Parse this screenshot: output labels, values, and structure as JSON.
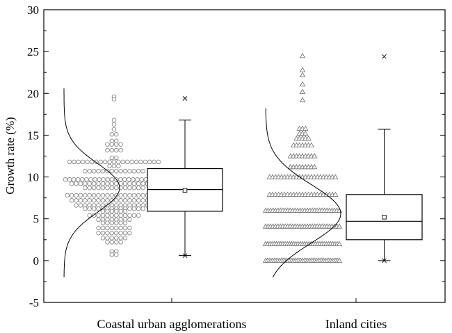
{
  "chart_data": {
    "type": "box",
    "ylabel": "Growth rate (%)",
    "ylim": [
      -5,
      30
    ],
    "yticks": [
      "-5",
      "0",
      "5",
      "10",
      "15",
      "20",
      "25",
      "30"
    ],
    "grid": false,
    "categories": [
      "Coastal urban agglomerations",
      "Inland cities"
    ],
    "groups": [
      {
        "category": "Coastal urban agglomerations",
        "marker": "circle",
        "box": {
          "whisker_low": 0.6,
          "q1": 5.9,
          "median": 8.5,
          "q3": 11.0,
          "whisker_high": 16.8,
          "mean": 8.4
        },
        "extremes": {
          "min": 0.6,
          "max": 19.4
        },
        "points": [
          {
            "y": 19.6,
            "n": 1
          },
          {
            "y": 19.3,
            "n": 1
          },
          {
            "y": 16.8,
            "n": 1
          },
          {
            "y": 16.3,
            "n": 1
          },
          {
            "y": 15.7,
            "n": 1
          },
          {
            "y": 15.1,
            "n": 2
          },
          {
            "y": 14.3,
            "n": 2
          },
          {
            "y": 13.9,
            "n": 4
          },
          {
            "y": 13.2,
            "n": 4
          },
          {
            "y": 12.3,
            "n": 2
          },
          {
            "y": 11.8,
            "n": 21
          },
          {
            "y": 11.3,
            "n": 3
          },
          {
            "y": 10.7,
            "n": 14
          },
          {
            "y": 9.7,
            "n": 24
          },
          {
            "y": 9.2,
            "n": 20
          },
          {
            "y": 8.7,
            "n": 14
          },
          {
            "y": 7.8,
            "n": 22
          },
          {
            "y": 7.2,
            "n": 20
          },
          {
            "y": 6.6,
            "n": 18
          },
          {
            "y": 6.2,
            "n": 14
          },
          {
            "y": 5.9,
            "n": 6
          },
          {
            "y": 5.4,
            "n": 12
          },
          {
            "y": 4.9,
            "n": 8
          },
          {
            "y": 4.5,
            "n": 6
          },
          {
            "y": 3.9,
            "n": 8
          },
          {
            "y": 3.3,
            "n": 8
          },
          {
            "y": 2.7,
            "n": 6
          },
          {
            "y": 2.2,
            "n": 4
          },
          {
            "y": 1.1,
            "n": 2
          },
          {
            "y": 0.7,
            "n": 2
          }
        ],
        "curve_range": [
          -2,
          20.7
        ]
      },
      {
        "category": "Inland cities",
        "marker": "triangle",
        "box": {
          "whisker_low": 0.0,
          "q1": 2.5,
          "median": 4.7,
          "q3": 7.9,
          "whisker_high": 15.7,
          "mean": 5.2
        },
        "extremes": {
          "min": 0.0,
          "max": 24.4
        },
        "points": [
          {
            "y": 24.5,
            "n": 1
          },
          {
            "y": 22.8,
            "n": 1
          },
          {
            "y": 22.2,
            "n": 1
          },
          {
            "y": 21.1,
            "n": 1
          },
          {
            "y": 20.2,
            "n": 1
          },
          {
            "y": 19.2,
            "n": 1
          },
          {
            "y": 15.8,
            "n": 3
          },
          {
            "y": 15.2,
            "n": 3
          },
          {
            "y": 14.6,
            "n": 5
          },
          {
            "y": 13.8,
            "n": 7
          },
          {
            "y": 12.5,
            "n": 9
          },
          {
            "y": 11.2,
            "n": 9
          },
          {
            "y": 10.0,
            "n": 23
          },
          {
            "y": 7.9,
            "n": 23
          },
          {
            "y": 6.0,
            "n": 31
          },
          {
            "y": 4.1,
            "n": 31
          },
          {
            "y": 2.0,
            "n": 35
          },
          {
            "y": 0.0,
            "n": 43
          }
        ],
        "curve_range": [
          -2,
          18.3
        ]
      }
    ]
  }
}
